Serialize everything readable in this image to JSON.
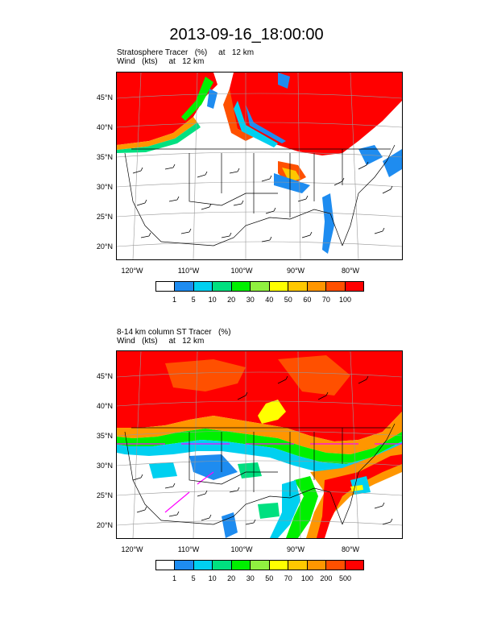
{
  "title": "2013-09-16_18:00:00",
  "panels": [
    {
      "subtitle_line1": "Stratosphere Tracer   (%)     at   12 km",
      "subtitle_line2": "Wind   (kts)     at   12 km",
      "lat_labels": [
        "45°N",
        "40°N",
        "35°N",
        "30°N",
        "25°N",
        "20°N"
      ],
      "lon_labels": [
        "120°W",
        "110°W",
        "100°W",
        "90°W",
        "80°W"
      ],
      "colorbar": {
        "colors": [
          "#ffffff",
          "#1e8cf0",
          "#00d0f0",
          "#00e080",
          "#00f000",
          "#90f040",
          "#ffff00",
          "#ffc800",
          "#ff9600",
          "#ff5000",
          "#ff0000"
        ],
        "labels": [
          "1",
          "5",
          "10",
          "20",
          "30",
          "40",
          "50",
          "60",
          "70",
          "100"
        ]
      }
    },
    {
      "subtitle_line1": "8-14 km column ST Tracer   (%)",
      "subtitle_line2": "Wind   (kts)     at   12 km",
      "lat_labels": [
        "45°N",
        "40°N",
        "35°N",
        "30°N",
        "25°N",
        "20°N"
      ],
      "lon_labels": [
        "120°W",
        "110°W",
        "100°W",
        "90°W",
        "80°W"
      ],
      "colorbar": {
        "colors": [
          "#ffffff",
          "#1e8cf0",
          "#00d0f0",
          "#00e080",
          "#00f000",
          "#90f040",
          "#ffff00",
          "#ffc800",
          "#ff9600",
          "#ff5000",
          "#ff0000"
        ],
        "labels": [
          "1",
          "5",
          "10",
          "20",
          "30",
          "50",
          "70",
          "100",
          "200",
          "500"
        ]
      }
    }
  ]
}
